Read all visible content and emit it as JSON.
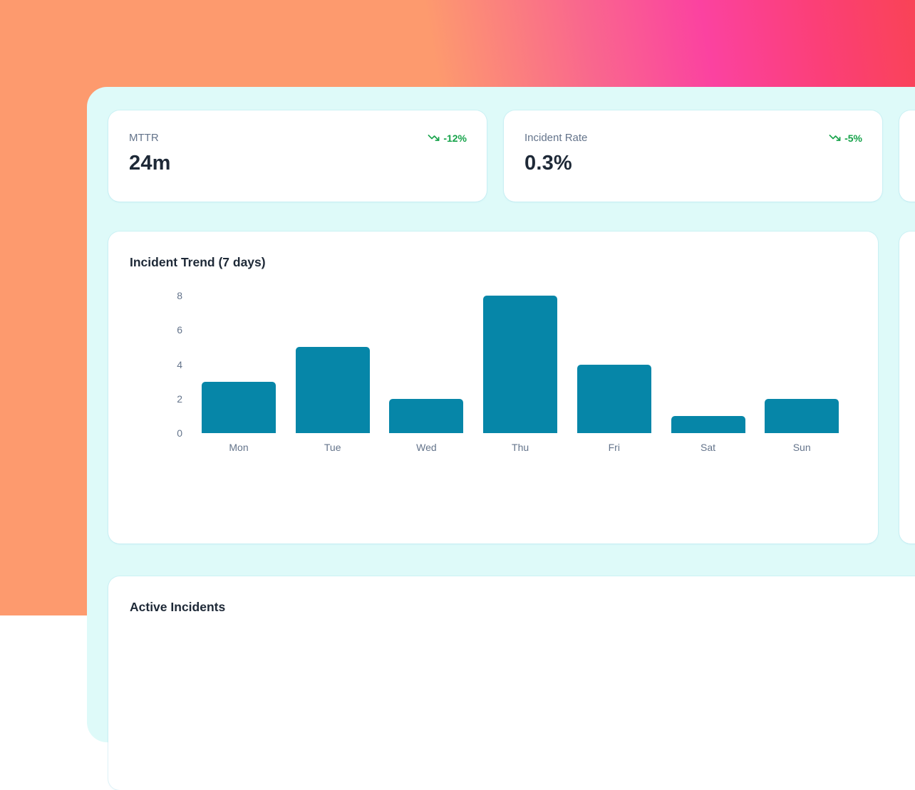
{
  "kpi_cards": [
    {
      "label": "MTTR",
      "value": "24m",
      "trend": "-12%",
      "trend_direction": "down"
    },
    {
      "label": "Incident Rate",
      "value": "0.3%",
      "trend": "-5%",
      "trend_direction": "down"
    }
  ],
  "chart_card": {
    "title": "Incident Trend (7 days)"
  },
  "chart_data": {
    "type": "bar",
    "title": "Incident Trend (7 days)",
    "categories": [
      "Mon",
      "Tue",
      "Wed",
      "Thu",
      "Fri",
      "Sat",
      "Sun"
    ],
    "values": [
      3,
      5,
      2,
      8,
      4,
      1,
      2
    ],
    "xlabel": "",
    "ylabel": "",
    "ylim": [
      0,
      8
    ],
    "yticks": [
      0,
      2,
      4,
      6,
      8
    ],
    "grid": false,
    "legend": false,
    "bar_color": "#0686a8"
  },
  "incidents_card": {
    "title": "Active Incidents"
  },
  "colors": {
    "bg_orange": "#fd9a6e",
    "bg_magenta": "#fb42a0",
    "bg_red": "#f94356",
    "panel_mint": "#defaf9",
    "card_white": "#ffffff",
    "text_dark": "#1e2937",
    "text_muted": "#64748b",
    "trend_green": "#16a34a",
    "bar_teal": "#0686a8"
  }
}
